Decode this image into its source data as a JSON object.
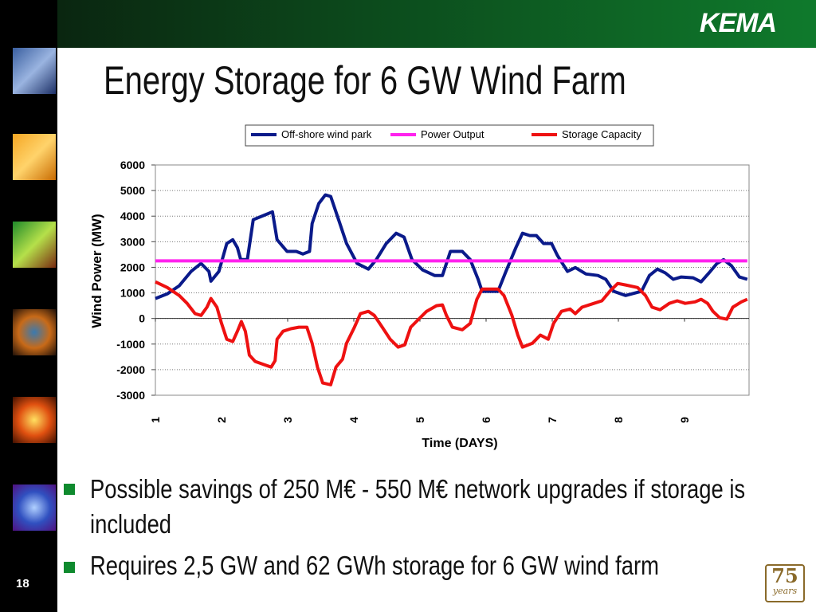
{
  "slide": {
    "title": "Energy Storage for 6 GW Wind Farm",
    "logo": "KEMA",
    "bullets": [
      "Possible savings of 250 M€ - 550 M€ network upgrades if storage is included",
      "Requires 2,5 GW and 62 GWh storage for 6 GW wind farm"
    ],
    "page_number": "18",
    "anniversary": "75",
    "anniversary_sub": "years"
  },
  "chart_data": {
    "type": "line",
    "x_label": "Time (DAYS)",
    "y_label": "Wind Power (MW)",
    "xlim": [
      1,
      10
    ],
    "xticks": [
      1,
      2,
      3,
      4,
      5,
      6,
      7,
      8,
      9
    ],
    "ylim": [
      -3000,
      6000
    ],
    "yticks": [
      -3000,
      -2000,
      -1000,
      0,
      1000,
      2000,
      3000,
      4000,
      5000,
      6000
    ],
    "grid": true,
    "legend": "top",
    "series": [
      {
        "name": "Off-shore wind park",
        "color": "#0a1a8a",
        "x": [
          1.0,
          1.18,
          1.36,
          1.54,
          1.69,
          1.81,
          1.84,
          1.96,
          2.08,
          2.17,
          2.24,
          2.29,
          2.39,
          2.48,
          2.63,
          2.77,
          2.84,
          2.99,
          3.13,
          3.23,
          3.33,
          3.37,
          3.47,
          3.57,
          3.65,
          3.77,
          3.89,
          4.05,
          4.22,
          4.34,
          4.49,
          4.64,
          4.76,
          4.88,
          5.04,
          5.22,
          5.34,
          5.46,
          5.64,
          5.76,
          5.88,
          5.94,
          6.18,
          6.3,
          6.45,
          6.55,
          6.66,
          6.76,
          6.87,
          6.99,
          7.08,
          7.23,
          7.35,
          7.51,
          7.69,
          7.81,
          7.93,
          8.11,
          8.35,
          8.47,
          8.59,
          8.71,
          8.83,
          8.95,
          9.13,
          9.25,
          9.37,
          9.49,
          9.59,
          9.71,
          9.83,
          9.95
        ],
        "values": [
          780,
          960,
          1280,
          1840,
          2150,
          1840,
          1460,
          1840,
          2930,
          3080,
          2770,
          2300,
          2300,
          3860,
          4020,
          4170,
          3080,
          2620,
          2620,
          2520,
          2620,
          3710,
          4490,
          4830,
          4770,
          3860,
          2930,
          2150,
          1930,
          2300,
          2930,
          3330,
          3180,
          2300,
          1900,
          1680,
          1680,
          2620,
          2620,
          2300,
          1530,
          1060,
          1060,
          1840,
          2770,
          3330,
          3240,
          3240,
          2930,
          2930,
          2460,
          1840,
          1990,
          1740,
          1680,
          1530,
          1060,
          900,
          1060,
          1680,
          1930,
          1780,
          1530,
          1620,
          1590,
          1430,
          1780,
          2150,
          2300,
          2060,
          1620,
          1530
        ]
      },
      {
        "name": "Power Output",
        "color": "#ff22ee",
        "x": [
          1.0,
          9.95
        ],
        "values": [
          2250,
          2250
        ]
      },
      {
        "name": "Storage Capacity",
        "color": "#ee1111",
        "x": [
          1.0,
          1.18,
          1.36,
          1.48,
          1.6,
          1.69,
          1.78,
          1.84,
          1.93,
          2.0,
          2.08,
          2.17,
          2.24,
          2.3,
          2.36,
          2.42,
          2.51,
          2.65,
          2.75,
          2.81,
          2.84,
          2.93,
          3.05,
          3.17,
          3.29,
          3.37,
          3.45,
          3.53,
          3.65,
          3.73,
          3.83,
          3.89,
          4.01,
          4.1,
          4.22,
          4.31,
          4.43,
          4.55,
          4.67,
          4.77,
          4.86,
          4.98,
          5.1,
          5.25,
          5.34,
          5.4,
          5.49,
          5.64,
          5.76,
          5.86,
          5.94,
          6.18,
          6.27,
          6.39,
          6.48,
          6.55,
          6.7,
          6.82,
          6.94,
          7.02,
          7.14,
          7.27,
          7.35,
          7.45,
          7.63,
          7.75,
          7.87,
          7.99,
          8.11,
          8.29,
          8.41,
          8.51,
          8.63,
          8.77,
          8.89,
          9.01,
          9.16,
          9.25,
          9.35,
          9.43,
          9.53,
          9.64,
          9.73,
          9.86,
          9.95
        ],
        "values": [
          1430,
          1210,
          900,
          590,
          190,
          120,
          440,
          780,
          440,
          -190,
          -810,
          -900,
          -500,
          -120,
          -500,
          -1430,
          -1680,
          -1810,
          -1900,
          -1650,
          -810,
          -500,
          -400,
          -340,
          -340,
          -970,
          -1900,
          -2520,
          -2590,
          -1900,
          -1590,
          -970,
          -340,
          190,
          280,
          120,
          -340,
          -810,
          -1120,
          -1030,
          -340,
          -30,
          280,
          500,
          530,
          120,
          -340,
          -440,
          -190,
          750,
          1150,
          1150,
          900,
          120,
          -650,
          -1120,
          -970,
          -650,
          -810,
          -190,
          280,
          370,
          190,
          440,
          590,
          690,
          1060,
          1370,
          1310,
          1210,
          900,
          440,
          340,
          590,
          690,
          590,
          650,
          750,
          590,
          280,
          30,
          -30,
          440,
          650,
          750
        ]
      }
    ]
  }
}
